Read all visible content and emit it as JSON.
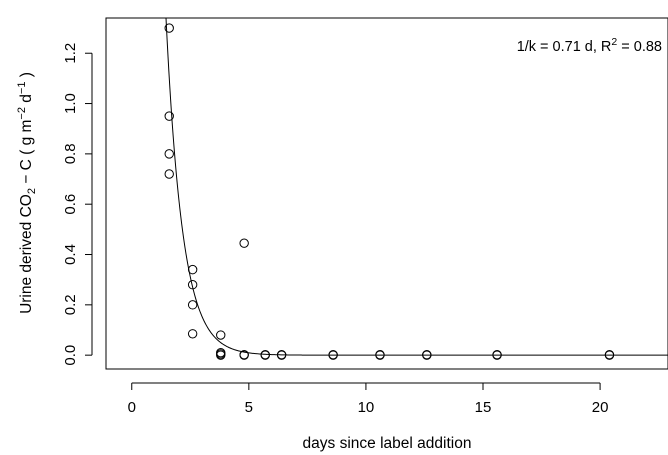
{
  "chart_data": {
    "type": "scatter",
    "title": "",
    "xlabel": "days since label addition",
    "ylabel": {
      "prefix": "Urine derived  CO",
      "sub": "2",
      "mid": " − C ( g m",
      "sup1": "−2",
      "mid2": " d",
      "sup2": "−1",
      "suffix": " )"
    },
    "annotation": {
      "text": "1/k = 0.71 d, R",
      "sup": "2",
      "suffix": " = 0.88"
    },
    "xlim": [
      -1.1,
      22.9
    ],
    "ylim": [
      -0.055,
      1.34
    ],
    "x_ticks": [
      0,
      5,
      10,
      15,
      20
    ],
    "y_ticks": [
      0.0,
      0.2,
      0.4,
      0.6,
      0.8,
      1.0,
      1.2
    ],
    "y_tick_labels": [
      "0.0",
      "0.2",
      "0.4",
      "0.6",
      "0.8",
      "1.0",
      "1.2"
    ],
    "fit_curve": {
      "type": "exponential_decay",
      "a": 10.5,
      "b": 1.408
    },
    "points": [
      {
        "x": 1.6,
        "y": 1.3
      },
      {
        "x": 1.6,
        "y": 0.95
      },
      {
        "x": 1.6,
        "y": 0.8
      },
      {
        "x": 1.6,
        "y": 0.72
      },
      {
        "x": 2.6,
        "y": 0.34
      },
      {
        "x": 2.6,
        "y": 0.28
      },
      {
        "x": 2.6,
        "y": 0.2
      },
      {
        "x": 2.6,
        "y": 0.085
      },
      {
        "x": 3.8,
        "y": 0.08
      },
      {
        "x": 3.8,
        "y": 0.01
      },
      {
        "x": 3.8,
        "y": 0.0
      },
      {
        "x": 3.8,
        "y": 0.005
      },
      {
        "x": 4.8,
        "y": 0.445
      },
      {
        "x": 4.8,
        "y": 0.0
      },
      {
        "x": 4.8,
        "y": 0.002
      },
      {
        "x": 5.7,
        "y": 0.0
      },
      {
        "x": 5.7,
        "y": 0.002
      },
      {
        "x": 6.4,
        "y": 0.0
      },
      {
        "x": 6.4,
        "y": 0.002
      },
      {
        "x": 8.6,
        "y": 0.0
      },
      {
        "x": 8.6,
        "y": 0.002
      },
      {
        "x": 10.6,
        "y": 0.0
      },
      {
        "x": 10.6,
        "y": 0.002
      },
      {
        "x": 12.6,
        "y": 0.0
      },
      {
        "x": 12.6,
        "y": 0.002
      },
      {
        "x": 15.6,
        "y": 0.0
      },
      {
        "x": 15.6,
        "y": 0.002
      },
      {
        "x": 20.4,
        "y": 0.0
      },
      {
        "x": 20.4,
        "y": 0.002
      }
    ],
    "grid": false,
    "legend": "none"
  }
}
